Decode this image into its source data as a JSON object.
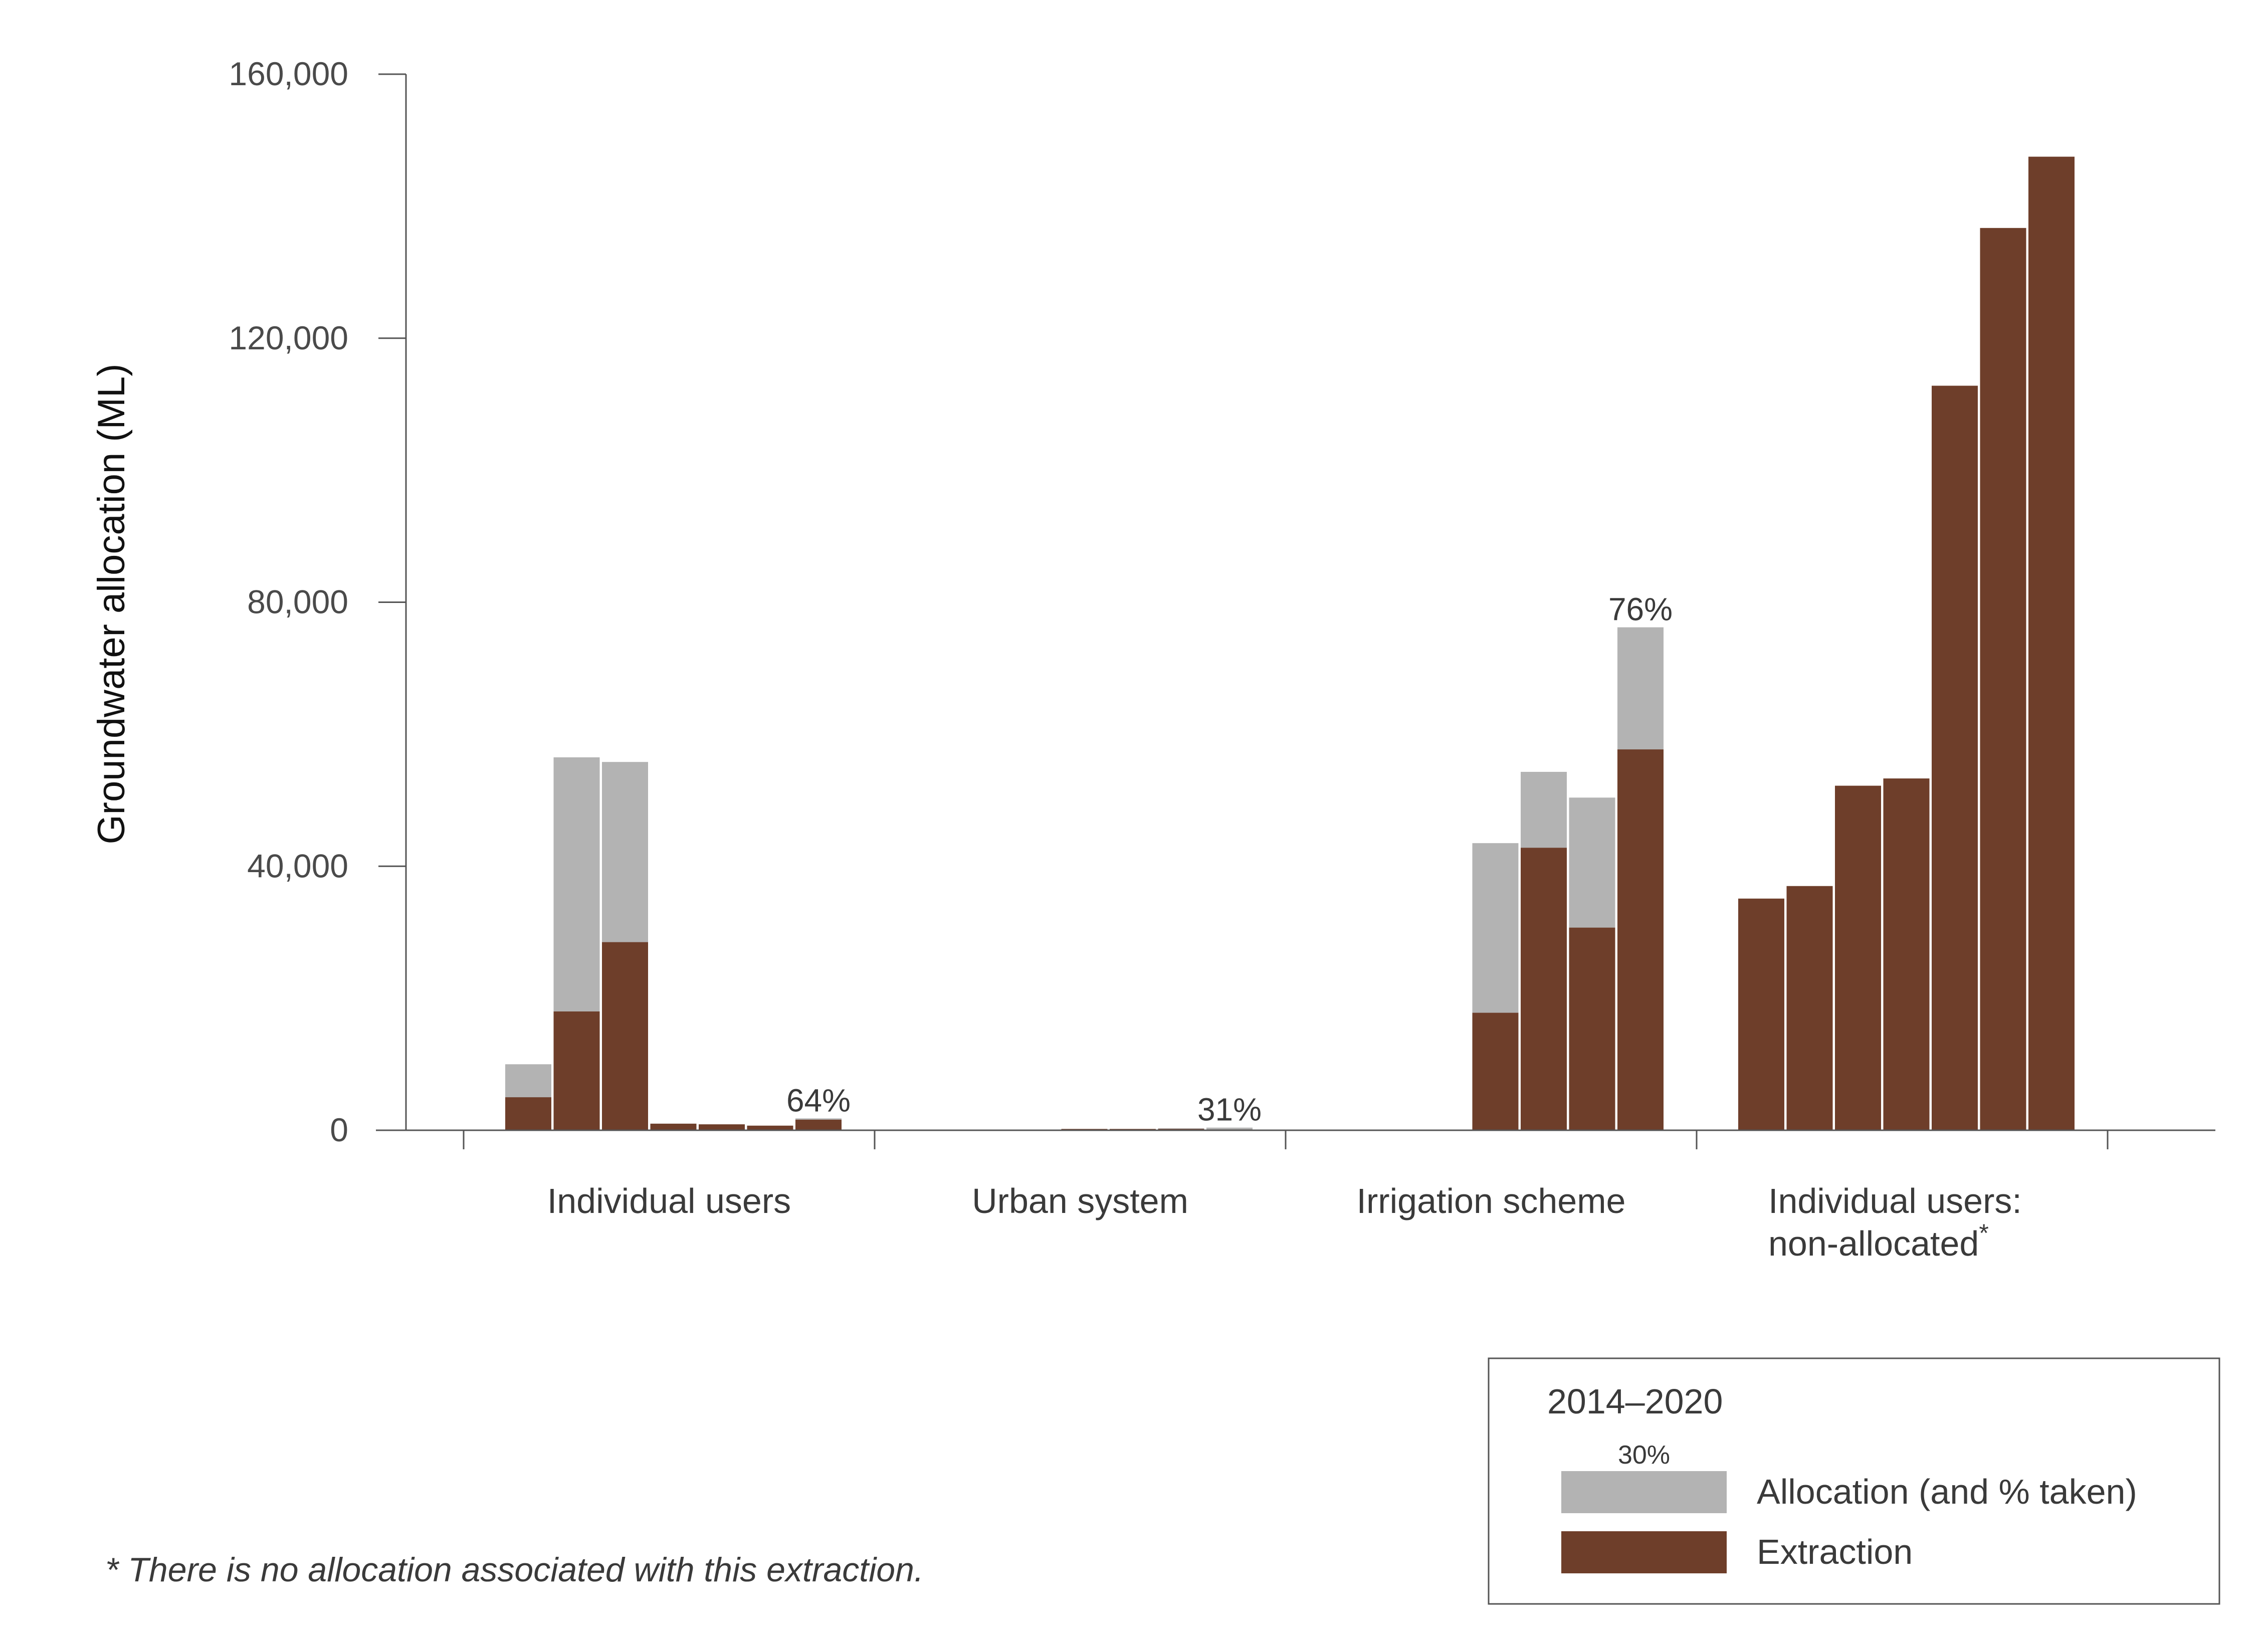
{
  "chart_data": {
    "type": "bar",
    "ylabel": "Groundwater allocation (ML)",
    "xlabel": "",
    "ylim": [
      0,
      160000
    ],
    "yticks": [
      0,
      40000,
      80000,
      120000,
      160000
    ],
    "ytick_labels": [
      "0",
      "40,000",
      "80,000",
      "120,000",
      "160,000"
    ],
    "period": "2014–2020",
    "colors": {
      "allocation": "#b3b3b3",
      "extraction": "#6e3e2a",
      "axis": "#555555"
    },
    "categories": [
      {
        "label": "Individual users",
        "allocation": [
          10000,
          56500,
          55800,
          0,
          0,
          0,
          1800
        ],
        "extraction": [
          5000,
          18000,
          28500,
          1000,
          900,
          700,
          1600
        ],
        "pct_label": "64%"
      },
      {
        "label": "Urban system",
        "allocation": [
          0,
          0,
          0,
          0,
          0,
          300,
          400
        ],
        "extraction": [
          0,
          0,
          0,
          200,
          200,
          200,
          120
        ],
        "pct_label": "31%"
      },
      {
        "label": "Irrigation scheme",
        "allocation": [
          0,
          0,
          0,
          43500,
          54300,
          50400,
          76200
        ],
        "extraction": [
          0,
          0,
          0,
          17800,
          42800,
          30700,
          57700
        ],
        "pct_label": "76%"
      },
      {
        "label": "Individual users:",
        "label_line2": "non-allocated",
        "label_mark": "*",
        "allocation": [
          0,
          0,
          0,
          0,
          0,
          0,
          0
        ],
        "extraction": [
          35100,
          37000,
          52200,
          53300,
          112800,
          136700,
          147500
        ],
        "pct_label": ""
      }
    ],
    "legend": {
      "title": "2014–2020",
      "sample_pct": "30%",
      "allocation_label": "Allocation (and % taken)",
      "extraction_label": "Extraction",
      "position": "bottom-right"
    },
    "footnote": "* There is no allocation associated with this extraction."
  }
}
